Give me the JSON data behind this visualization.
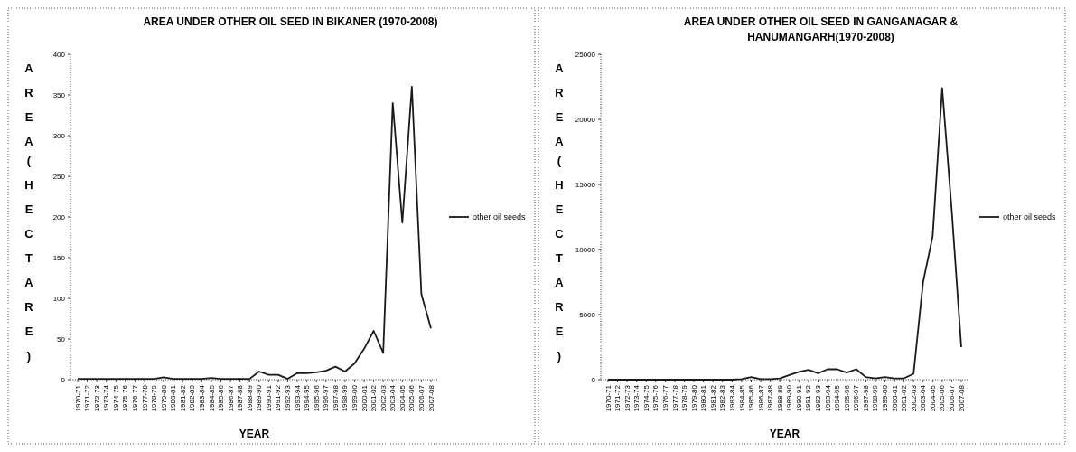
{
  "chart_data": [
    {
      "type": "line",
      "title": "AREA UNDER OTHER OIL SEED IN BIKANER (1970-2008)",
      "xlabel": "YEAR",
      "ylabel": "AREA (HECTARE)",
      "categories": [
        "1970-71",
        "1971-72",
        "1972-73",
        "1973-74",
        "1974-75",
        "1975-76",
        "1976-77",
        "1977-78",
        "1978-79",
        "1979-80",
        "1980-81",
        "1981-82",
        "1982-83",
        "1983-84",
        "1984-85",
        "1985-86",
        "1986-87",
        "1987-88",
        "1988-89",
        "1989-90",
        "1990-91",
        "1991-92",
        "1992-93",
        "1993-94",
        "1994-95",
        "1995-96",
        "1996-97",
        "1997-98",
        "1998-99",
        "1999-00",
        "2000-01",
        "2001-02",
        "2002-03",
        "2003-04",
        "2004-05",
        "2005-06",
        "2006-07",
        "2007-08"
      ],
      "series": [
        {
          "name": "other oil seeds",
          "color": "#1a1a1a",
          "values": [
            1,
            1,
            1,
            1,
            1,
            1,
            1,
            1,
            1,
            3,
            1,
            1,
            1,
            1,
            2,
            1,
            1,
            1,
            1,
            10,
            6,
            6,
            1,
            8,
            8,
            9,
            11,
            16,
            10,
            20,
            38,
            60,
            33,
            340,
            193,
            360,
            105,
            63
          ]
        }
      ],
      "ylim": [
        0,
        400
      ],
      "yticks": [
        0,
        50,
        100,
        150,
        200,
        250,
        300,
        350,
        400
      ],
      "legend": "right",
      "grid": false,
      "marker": "none"
    },
    {
      "type": "line",
      "title": "AREA UNDER OTHER OIL SEED IN GANGANAGAR & HANUMANGARH(1970-2008)",
      "xlabel": "YEAR",
      "ylabel": "AREA (HECTARE)",
      "categories": [
        "1970-71",
        "1971-72",
        "1972-73",
        "1973-74",
        "1974-75",
        "1975-76",
        "1976-77",
        "1977-78",
        "1978-79",
        "1979-80",
        "1980-81",
        "1981-82",
        "1982-83",
        "1983-84",
        "1984-85",
        "1985-86",
        "1986-87",
        "1987-88",
        "1988-89",
        "1989-90",
        "1990-91",
        "1991-92",
        "1992-93",
        "1993-94",
        "1994-95",
        "1995-96",
        "1996-97",
        "1997-98",
        "1998-99",
        "1999-00",
        "2000-01",
        "2001-02",
        "2002-03",
        "2003-04",
        "2004-05",
        "2005-06",
        "2006-07",
        "2007-08"
      ],
      "series": [
        {
          "name": "other oil seeds",
          "color": "#1a1a1a",
          "values": [
            0,
            0,
            0,
            0,
            0,
            0,
            0,
            0,
            0,
            0,
            0,
            0,
            0,
            0,
            50,
            200,
            50,
            50,
            100,
            350,
            600,
            750,
            500,
            800,
            800,
            550,
            800,
            200,
            100,
            200,
            100,
            100,
            450,
            7500,
            11000,
            22400,
            13000,
            2500
          ]
        }
      ],
      "ylim": [
        0,
        25000
      ],
      "yticks": [
        0,
        5000,
        10000,
        15000,
        20000,
        25000
      ],
      "legend": "right",
      "grid": false,
      "marker": "none"
    }
  ]
}
